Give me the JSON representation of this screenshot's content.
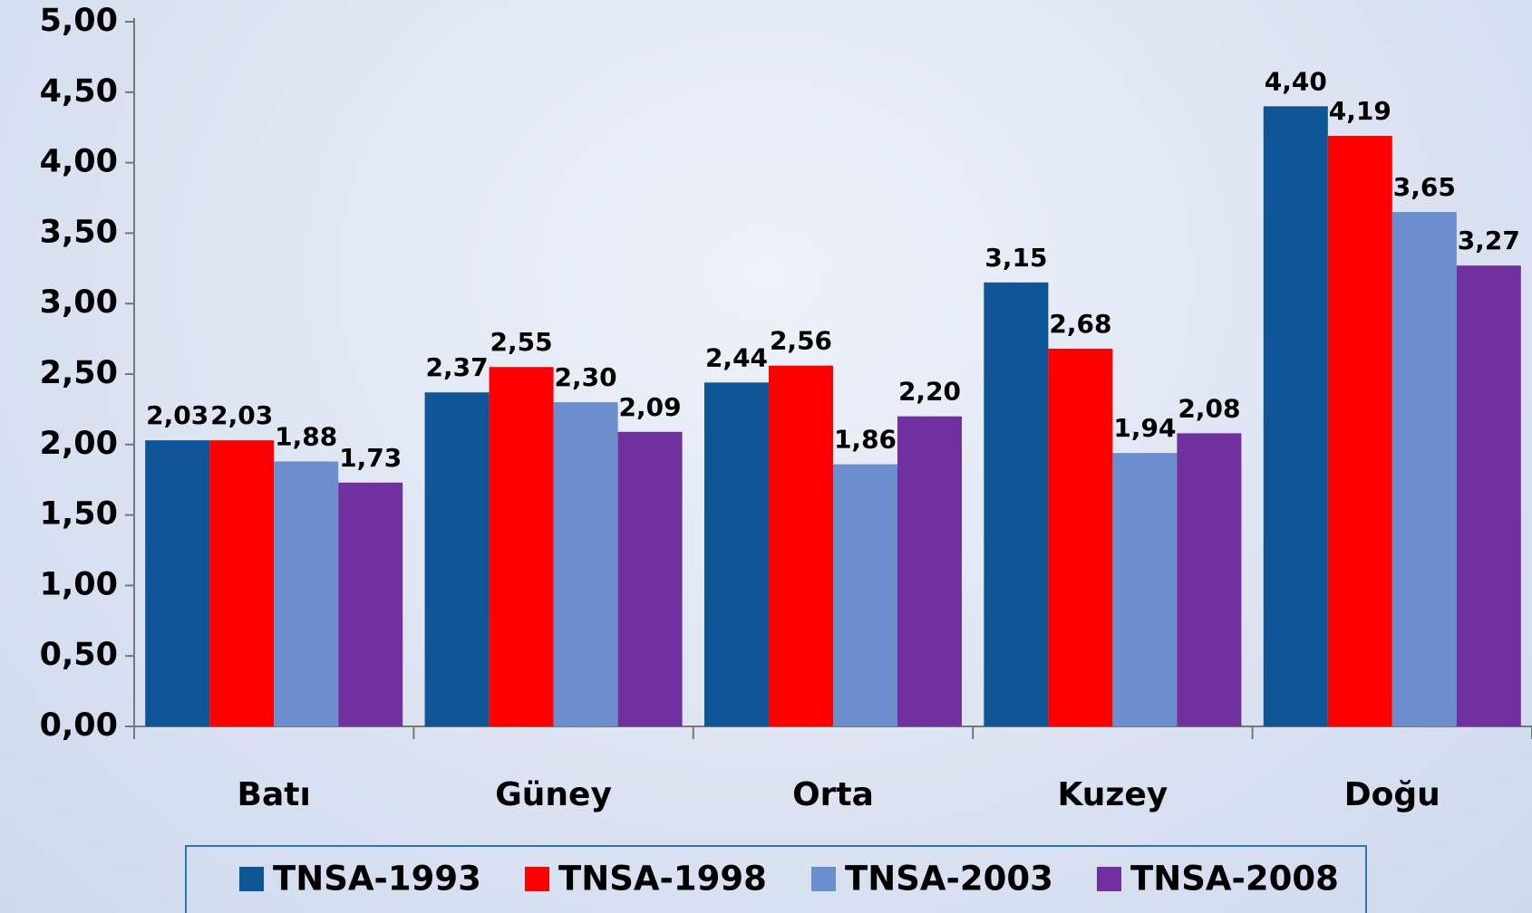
{
  "chart_data": {
    "type": "bar",
    "categories": [
      "Batı",
      "Güney",
      "Orta",
      "Kuzey",
      "Doğu"
    ],
    "series": [
      {
        "name": "TNSA-1993",
        "color": "#0d5597",
        "values": [
          2.03,
          2.37,
          2.44,
          3.15,
          4.4
        ],
        "value_labels": [
          "2,03",
          "2,37",
          "2,44",
          "3,15",
          "4,40"
        ]
      },
      {
        "name": "TNSA-1998",
        "color": "#ff0000",
        "values": [
          2.03,
          2.55,
          2.56,
          2.68,
          4.19
        ],
        "value_labels": [
          "2,03",
          "2,55",
          "2,56",
          "2,68",
          "4,19"
        ]
      },
      {
        "name": "TNSA-2003",
        "color": "#6a8fcc",
        "values": [
          1.88,
          2.3,
          1.86,
          1.94,
          3.65
        ],
        "value_labels": [
          "1,88",
          "2,30",
          "1,86",
          "1,94",
          "3,65"
        ]
      },
      {
        "name": "TNSA-2008",
        "color": "#7030a0",
        "values": [
          1.73,
          2.09,
          2.2,
          2.08,
          3.27
        ],
        "value_labels": [
          "1,73",
          "2,09",
          "2,20",
          "2,08",
          "3,27"
        ]
      }
    ],
    "ylim": [
      0,
      5
    ],
    "yticks": [
      {
        "value": 0,
        "label": "0,00"
      },
      {
        "value": 0.5,
        "label": "0,50"
      },
      {
        "value": 1,
        "label": "1,00"
      },
      {
        "value": 1.5,
        "label": "1,50"
      },
      {
        "value": 2,
        "label": "2,00"
      },
      {
        "value": 2.5,
        "label": "2,50"
      },
      {
        "value": 3,
        "label": "3,00"
      },
      {
        "value": 3.5,
        "label": "3,50"
      },
      {
        "value": 4,
        "label": "4,00"
      },
      {
        "value": 4.5,
        "label": "4,50"
      },
      {
        "value": 5,
        "label": "5,00"
      }
    ],
    "legend": "bottom"
  }
}
